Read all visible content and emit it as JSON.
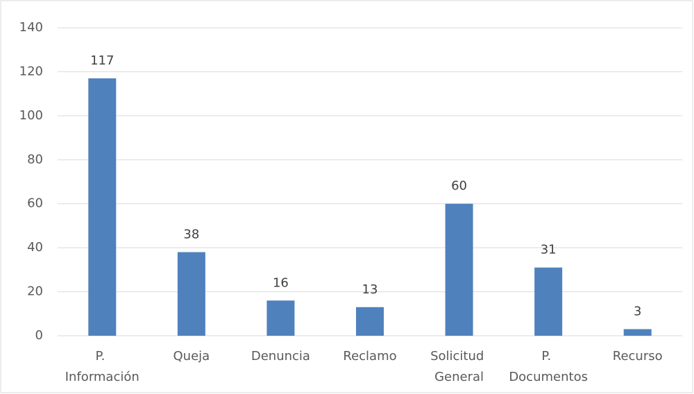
{
  "chart_data": {
    "type": "bar",
    "categories": [
      "P. Información",
      "Queja",
      "Denuncia",
      "Reclamo",
      "Solicitud General",
      "P. Documentos",
      "Recurso"
    ],
    "values": [
      117,
      38,
      16,
      13,
      60,
      31,
      3
    ],
    "color": "#4f81bd",
    "ylim": [
      0,
      140
    ],
    "yticks": [
      0,
      20,
      40,
      60,
      80,
      100,
      120,
      140
    ],
    "grid": true
  }
}
